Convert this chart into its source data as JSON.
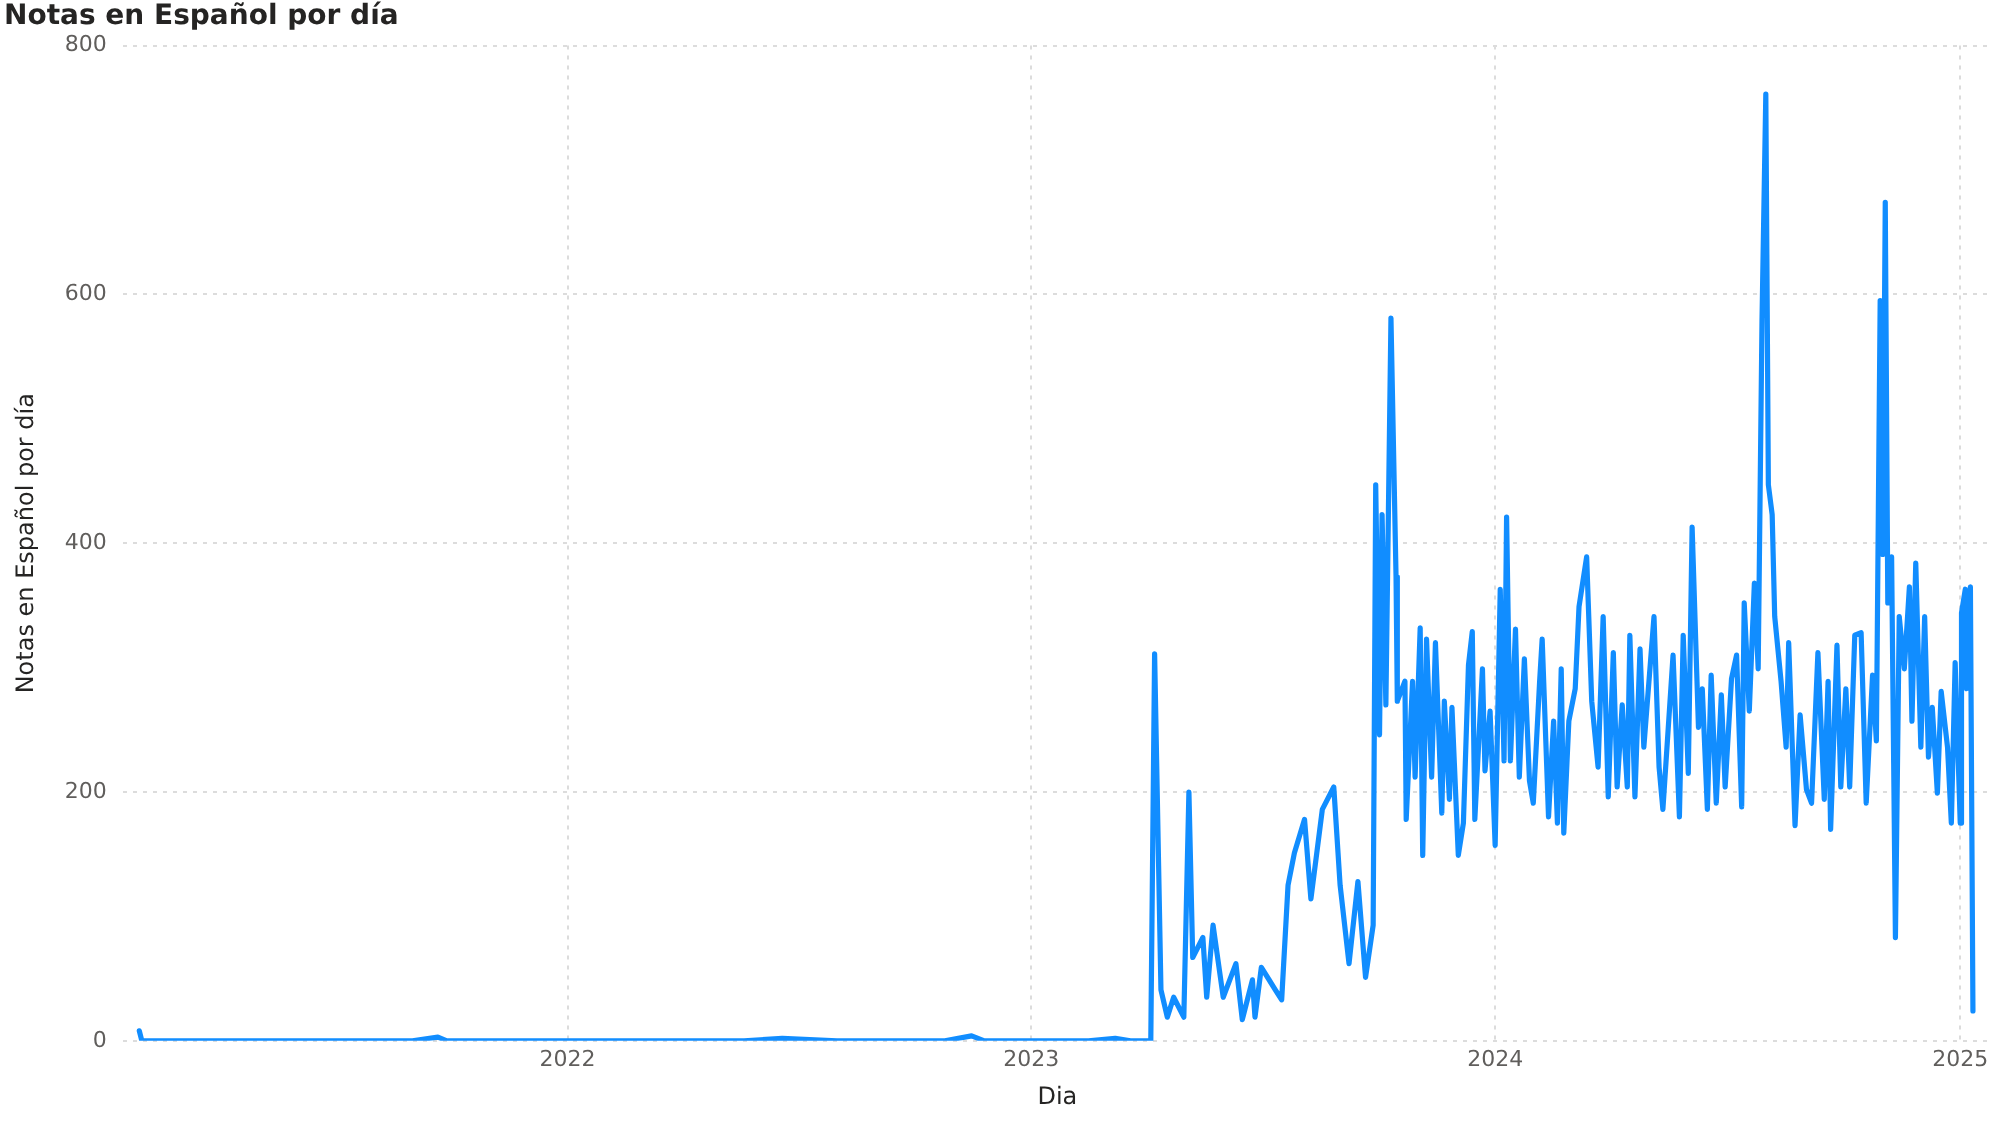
{
  "chart_data": {
    "type": "line",
    "title": "Notas en Español por día",
    "xlabel": "Dia",
    "ylabel": "Notas en Español por día",
    "xlim": [
      "2021-01-16",
      "2025-01-26"
    ],
    "xticks": [
      "2022",
      "2023",
      "2024",
      "2025"
    ],
    "ylim": [
      0,
      800
    ],
    "yticks": [
      0,
      200,
      400,
      600,
      800
    ],
    "grid": true,
    "legend": false,
    "marker": "none",
    "line_style": "solid",
    "series": [
      {
        "color": "#118dff",
        "x": [
          "2021-01-29",
          "2021-01-31",
          "2021-09-01",
          "2021-09-21",
          "2021-09-28",
          "2022-05-20",
          "2022-06-19",
          "2022-08-01",
          "2022-10-25",
          "2022-11-15",
          "2022-11-25",
          "2023-02-15",
          "2023-03-08",
          "2023-03-20",
          "2023-04-05",
          "2023-04-08",
          "2023-04-13",
          "2023-04-18",
          "2023-04-23",
          "2023-05-01",
          "2023-05-05",
          "2023-05-08",
          "2023-05-16",
          "2023-05-19",
          "2023-05-24",
          "2023-06-01",
          "2023-06-11",
          "2023-06-16",
          "2023-06-24",
          "2023-06-26",
          "2023-07-01",
          "2023-07-12",
          "2023-07-17",
          "2023-07-22",
          "2023-07-27",
          "2023-08-04",
          "2023-08-09",
          "2023-08-18",
          "2023-08-27",
          "2023-09-01",
          "2023-09-08",
          "2023-09-15",
          "2023-09-21",
          "2023-09-27",
          "2023-09-29",
          "2023-10-02",
          "2023-10-04",
          "2023-10-07",
          "2023-10-11",
          "2023-10-15",
          "2023-10-16",
          "2023-10-22",
          "2023-10-23",
          "2023-10-28",
          "2023-10-30",
          "2023-11-03",
          "2023-11-05",
          "2023-11-08",
          "2023-11-12",
          "2023-11-15",
          "2023-11-20",
          "2023-11-22",
          "2023-11-26",
          "2023-11-28",
          "2023-12-03",
          "2023-12-07",
          "2023-12-11",
          "2023-12-14",
          "2023-12-16",
          "2023-12-22",
          "2023-12-24",
          "2023-12-28",
          "2024-01-01",
          "2024-01-05",
          "2024-01-08",
          "2024-01-10",
          "2024-01-13",
          "2024-01-17",
          "2024-01-20",
          "2024-01-24",
          "2024-01-28",
          "2024-01-31",
          "2024-02-05",
          "2024-02-07",
          "2024-02-12",
          "2024-02-16",
          "2024-02-19",
          "2024-02-22",
          "2024-02-24",
          "2024-02-28",
          "2024-03-04",
          "2024-03-07",
          "2024-03-13",
          "2024-03-17",
          "2024-03-22",
          "2024-03-26",
          "2024-03-30",
          "2024-04-03",
          "2024-04-06",
          "2024-04-10",
          "2024-04-14",
          "2024-04-16",
          "2024-04-20",
          "2024-04-24",
          "2024-04-27",
          "2024-05-05",
          "2024-05-09",
          "2024-05-12",
          "2024-05-20",
          "2024-05-25",
          "2024-05-28",
          "2024-06-01",
          "2024-06-04",
          "2024-06-09",
          "2024-06-12",
          "2024-06-16",
          "2024-06-19",
          "2024-06-23",
          "2024-06-27",
          "2024-06-30",
          "2024-07-05",
          "2024-07-09",
          "2024-07-13",
          "2024-07-15",
          "2024-07-19",
          "2024-07-23",
          "2024-07-26",
          "2024-07-29",
          "2024-08-01",
          "2024-08-03",
          "2024-08-06",
          "2024-08-08",
          "2024-08-13",
          "2024-08-17",
          "2024-08-19",
          "2024-08-24",
          "2024-08-28",
          "2024-09-02",
          "2024-09-06",
          "2024-09-11",
          "2024-09-16",
          "2024-09-19",
          "2024-09-21",
          "2024-09-26",
          "2024-09-29",
          "2024-10-03",
          "2024-10-06",
          "2024-10-10",
          "2024-10-15",
          "2024-10-19",
          "2024-10-24",
          "2024-10-27",
          "2024-10-30",
          "2024-11-01",
          "2024-11-03",
          "2024-11-05",
          "2024-11-08",
          "2024-11-11",
          "2024-11-14",
          "2024-11-18",
          "2024-11-22",
          "2024-11-24",
          "2024-11-27",
          "2024-12-01",
          "2024-12-04",
          "2024-12-07",
          "2024-12-10",
          "2024-12-14",
          "2024-12-17",
          "2024-12-22",
          "2024-12-25",
          "2024-12-28",
          "2025-01-01",
          "2025-01-02",
          "2025-01-05",
          "2025-01-06",
          "2025-01-09",
          "2025-01-11"
        ],
        "values": [
          8,
          0,
          0,
          3,
          0,
          0,
          2,
          0,
          0,
          4,
          0,
          0,
          2,
          0,
          0,
          311,
          41,
          19,
          35,
          19,
          200,
          67,
          83,
          35,
          93,
          35,
          62,
          17,
          49,
          19,
          59,
          41,
          33,
          125,
          151,
          178,
          114,
          186,
          204,
          125,
          62,
          128,
          51,
          93,
          447,
          246,
          423,
          270,
          581,
          373,
          273,
          289,
          178,
          289,
          212,
          332,
          149,
          323,
          212,
          320,
          183,
          273,
          194,
          268,
          149,
          175,
          302,
          329,
          178,
          299,
          217,
          265,
          157,
          363,
          225,
          421,
          225,
          331,
          212,
          307,
          209,
          191,
          289,
          323,
          180,
          257,
          175,
          299,
          167,
          257,
          283,
          349,
          389,
          273,
          220,
          341,
          196,
          312,
          204,
          270,
          204,
          326,
          196,
          315,
          236,
          341,
          220,
          186,
          310,
          180,
          326,
          215,
          413,
          252,
          283,
          186,
          294,
          191,
          278,
          204,
          291,
          310,
          188,
          352,
          265,
          368,
          299,
          579,
          761,
          447,
          423,
          341,
          289,
          236,
          320,
          173,
          262,
          202,
          191,
          312,
          194,
          289,
          170,
          318,
          204,
          283,
          204,
          326,
          328,
          191,
          294,
          241,
          595,
          391,
          674,
          352,
          389,
          83,
          341,
          299,
          365,
          257,
          384,
          236,
          341,
          228,
          268,
          199,
          281,
          236,
          175,
          304,
          175,
          344,
          363,
          283,
          365,
          24
        ]
      }
    ]
  }
}
